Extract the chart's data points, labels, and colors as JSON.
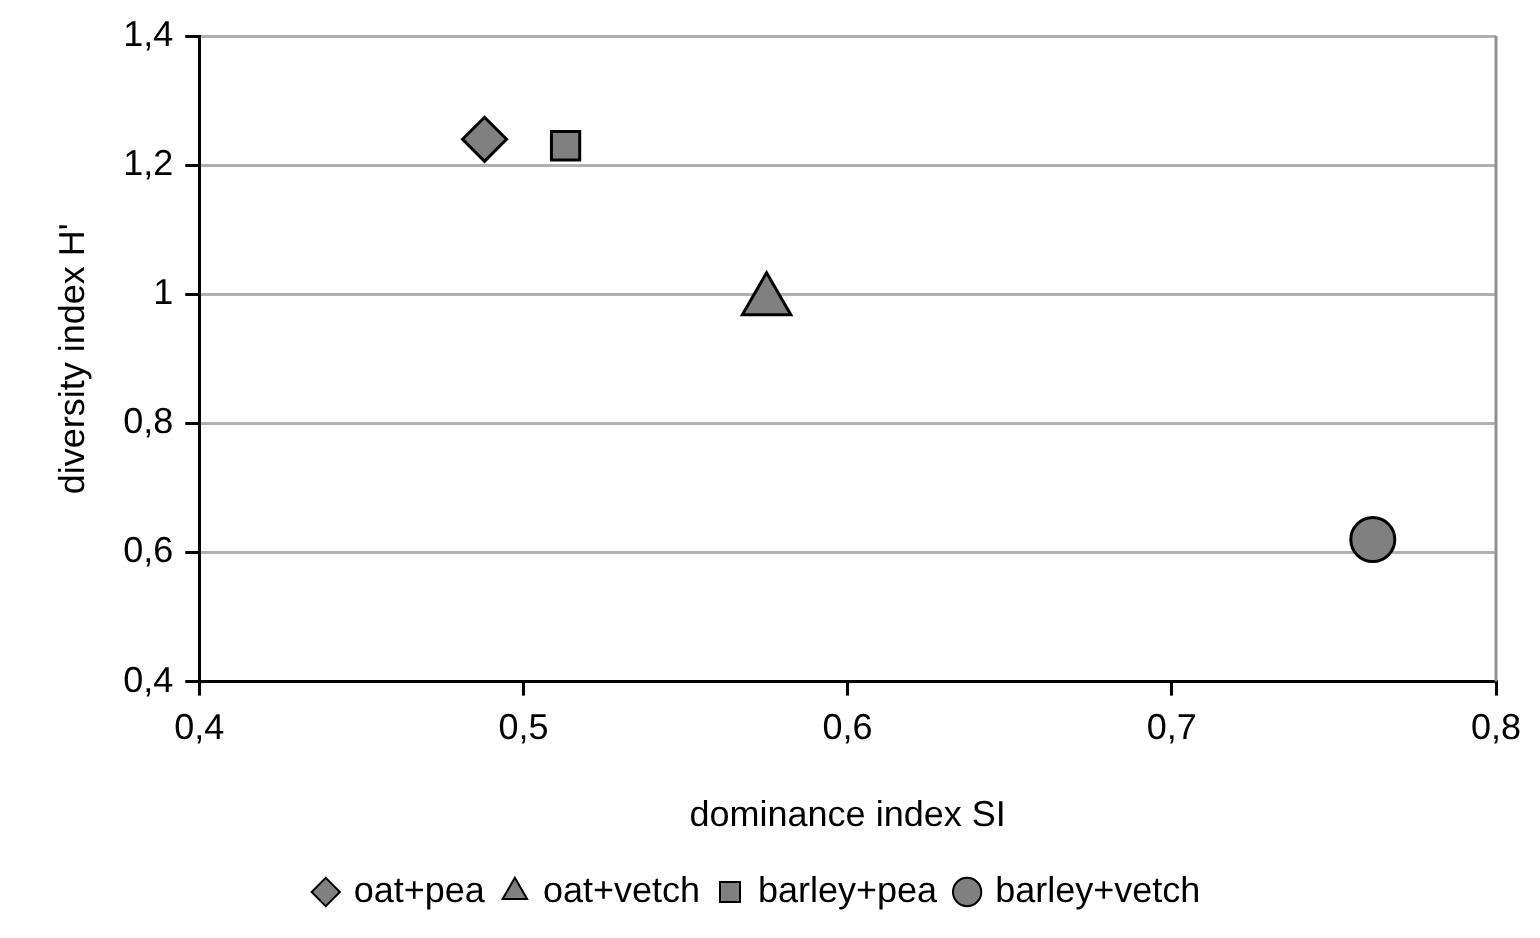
{
  "chart_data": {
    "type": "scatter",
    "xlabel": "dominance index SI",
    "ylabel": "diversity index H'",
    "series": [
      {
        "name": "oat+pea",
        "color": "#808080",
        "marker": "diamond",
        "x": [
          0.488
        ],
        "values": [
          1.24
        ]
      },
      {
        "name": "oat+vetch",
        "color": "#808080",
        "marker": "triangle",
        "x": [
          0.575
        ],
        "values": [
          0.99
        ]
      },
      {
        "name": "barley+pea",
        "color": "#808080",
        "marker": "square",
        "x": [
          0.513
        ],
        "values": [
          1.23
        ]
      },
      {
        "name": "barley+vetch",
        "color": "#808080",
        "marker": "circle",
        "x": [
          0.762
        ],
        "values": [
          0.62
        ]
      }
    ],
    "xlim": [
      0.4,
      0.8
    ],
    "xticks": [
      {
        "value": 0.4,
        "label": "0,4"
      },
      {
        "value": 0.5,
        "label": "0,5"
      },
      {
        "value": 0.6,
        "label": "0,6"
      },
      {
        "value": 0.7,
        "label": "0,7"
      },
      {
        "value": 0.8,
        "label": "0,8"
      }
    ],
    "ylim": [
      0.4,
      1.4
    ],
    "yticks": [
      {
        "value": 0.4,
        "label": "0,4"
      },
      {
        "value": 0.6,
        "label": "0,6"
      },
      {
        "value": 0.8,
        "label": "0,8"
      },
      {
        "value": 1,
        "label": "1"
      },
      {
        "value": 1.2,
        "label": "1,2"
      },
      {
        "value": 1.4,
        "label": "1,4"
      }
    ],
    "grid": "y",
    "legend": "bottom"
  }
}
